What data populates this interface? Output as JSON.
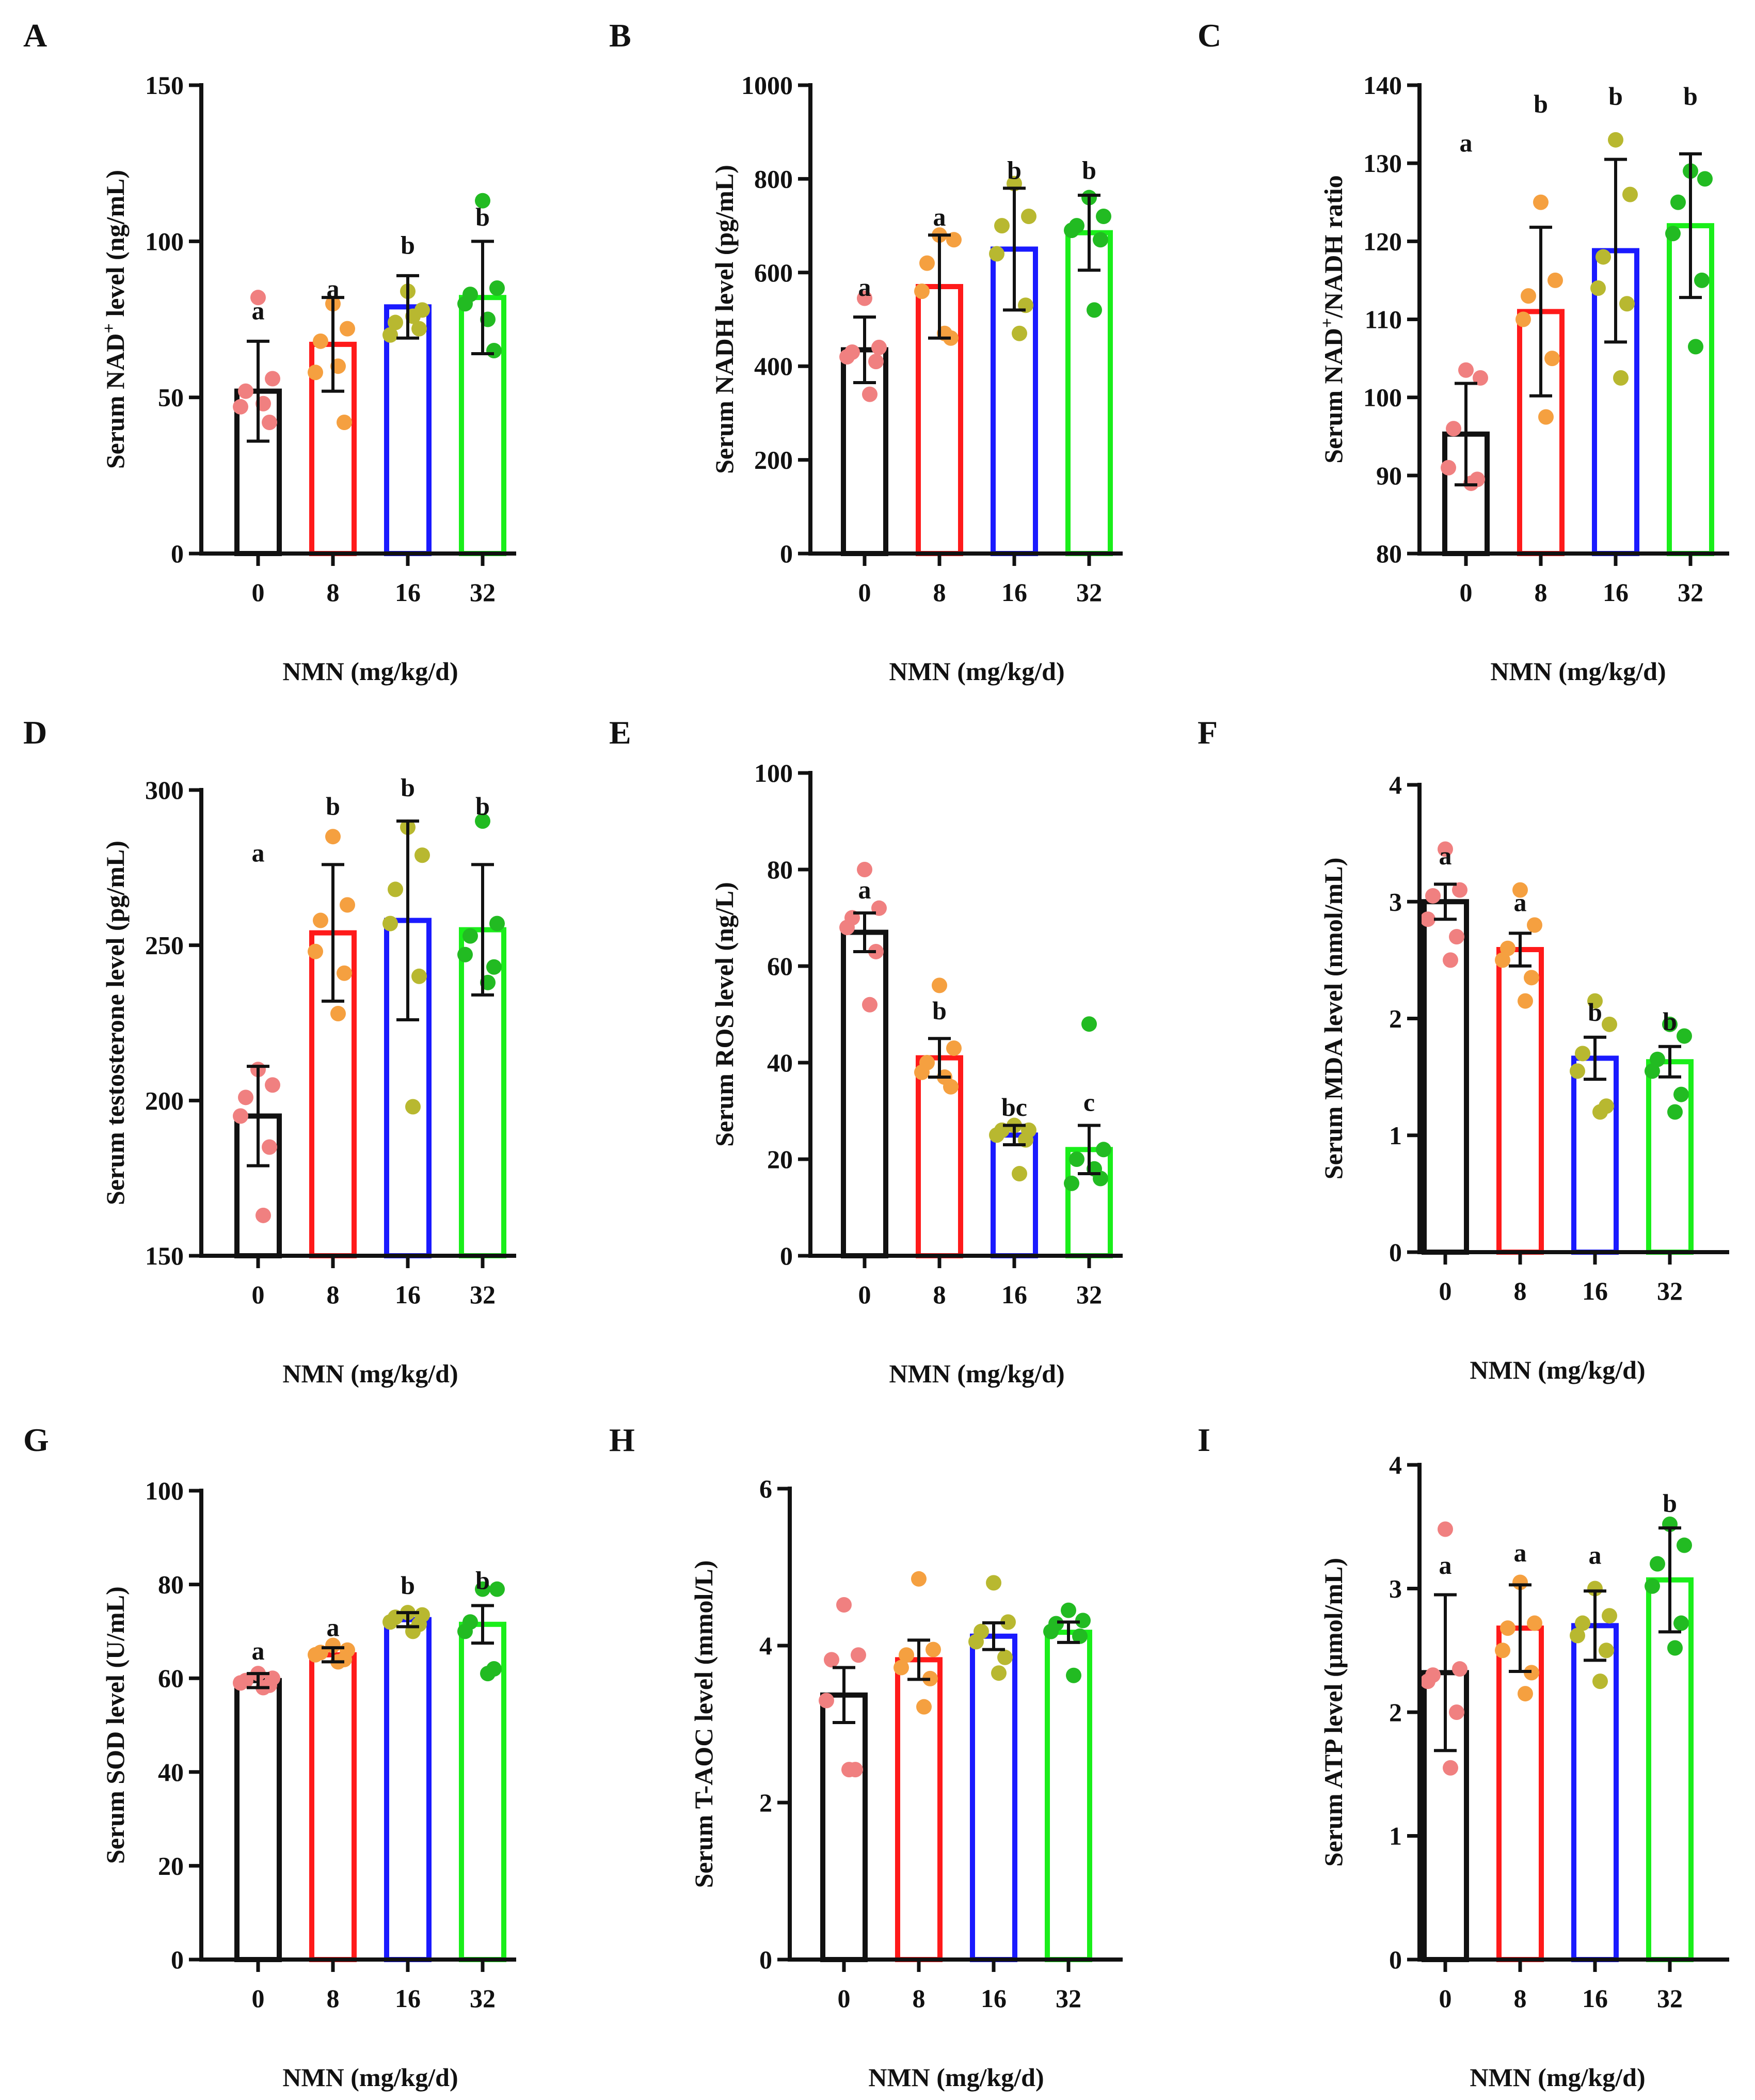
{
  "figure": {
    "xlabel": "NMN (mg/kg/d)",
    "categories": [
      "0",
      "8",
      "16",
      "32"
    ],
    "group_colors": [
      "#111111",
      "#ff1a1a",
      "#1a1aff",
      "#1aee1a"
    ],
    "point_colors": [
      "#f08080",
      "#f5a040",
      "#b8b830",
      "#22bb22"
    ]
  },
  "chart_data": [
    {
      "panel": "A",
      "type": "bar",
      "title": "",
      "xlabel": "NMN (mg/kg/d)",
      "ylabel_parts": [
        [
          "Serum NAD",
          false
        ],
        [
          "+",
          true
        ],
        [
          " level (ng/mL)",
          false
        ]
      ],
      "ylim": [
        0,
        150
      ],
      "yticks": [
        0,
        50,
        100,
        150
      ],
      "categories": [
        "0",
        "8",
        "16",
        "32"
      ],
      "values": [
        52,
        67,
        79,
        82
      ],
      "errors": [
        16,
        15,
        10,
        18
      ],
      "letters": [
        "a",
        "a",
        "b",
        "b"
      ],
      "letter_at": [
        75,
        82,
        96,
        105
      ],
      "points": [
        [
          82,
          56,
          52,
          47,
          42,
          48
        ],
        [
          80,
          72,
          68,
          58,
          42,
          60
        ],
        [
          84,
          78,
          74,
          70,
          72,
          76
        ],
        [
          113,
          85,
          83,
          80,
          65,
          75
        ]
      ]
    },
    {
      "panel": "B",
      "type": "bar",
      "title": "",
      "xlabel": "NMN (mg/kg/d)",
      "ylabel_parts": [
        [
          "Serum NADH level (pg/mL)",
          false
        ]
      ],
      "ylim": [
        0,
        1000
      ],
      "yticks": [
        0,
        200,
        400,
        600,
        800,
        1000
      ],
      "categories": [
        "0",
        "8",
        "16",
        "32"
      ],
      "values": [
        435,
        570,
        650,
        685
      ],
      "errors": [
        70,
        110,
        130,
        80
      ],
      "letters": [
        "a",
        "a",
        "b",
        "b"
      ],
      "letter_at": [
        550,
        700,
        800,
        800
      ],
      "points": [
        [
          545,
          440,
          430,
          420,
          410,
          340
        ],
        [
          680,
          670,
          620,
          560,
          460,
          470
        ],
        [
          790,
          720,
          700,
          640,
          530,
          470
        ],
        [
          760,
          720,
          700,
          690,
          670,
          520
        ]
      ]
    },
    {
      "panel": "C",
      "type": "bar",
      "title": "",
      "xlabel": "NMN (mg/kg/d)",
      "ylabel_parts": [
        [
          "Serum NAD",
          false
        ],
        [
          "+",
          true
        ],
        [
          "/NADH ratio",
          false
        ]
      ],
      "ylim": [
        80,
        140
      ],
      "yticks": [
        80,
        90,
        100,
        110,
        120,
        130,
        140
      ],
      "categories": [
        "0",
        "8",
        "16",
        "32"
      ],
      "values": [
        95.3,
        111,
        118.8,
        122
      ],
      "errors": [
        6.5,
        10.8,
        11.7,
        9.2
      ],
      "letters": [
        "a",
        "b",
        "b",
        "b"
      ],
      "letter_at": [
        131.5,
        136.5,
        137.5,
        137.5
      ],
      "points": [
        [
          103.5,
          102.5,
          96,
          91,
          89.5,
          89
        ],
        [
          125,
          115,
          113,
          110,
          105,
          97.5
        ],
        [
          133,
          126,
          118,
          114,
          112,
          102.5
        ],
        [
          129,
          128,
          125,
          121,
          115,
          106.5
        ]
      ]
    },
    {
      "panel": "D",
      "type": "bar",
      "title": "",
      "xlabel": "NMN (mg/kg/d)",
      "ylabel_parts": [
        [
          "Serum testosterone level (pg/mL)",
          false
        ]
      ],
      "ylim": [
        150,
        300
      ],
      "yticks": [
        150,
        200,
        250,
        300
      ],
      "categories": [
        "0",
        "8",
        "16",
        "32"
      ],
      "values": [
        195,
        254,
        258,
        255
      ],
      "errors": [
        16,
        22,
        32,
        21
      ],
      "letters": [
        "a",
        "b",
        "b",
        "b"
      ],
      "letter_at": [
        277,
        292,
        298,
        292
      ],
      "points": [
        [
          210,
          205,
          201,
          195,
          185,
          163
        ],
        [
          285,
          263,
          258,
          248,
          241,
          228
        ],
        [
          288,
          279,
          268,
          257,
          240,
          198
        ],
        [
          290,
          257,
          253,
          247,
          243,
          238
        ]
      ]
    },
    {
      "panel": "E",
      "type": "bar",
      "title": "",
      "xlabel": "NMN (mg/kg/d)",
      "ylabel_parts": [
        [
          "Serum ROS level (ng/L)",
          false
        ]
      ],
      "ylim": [
        0,
        100
      ],
      "yticks": [
        0,
        20,
        40,
        60,
        80,
        100
      ],
      "categories": [
        "0",
        "8",
        "16",
        "32"
      ],
      "values": [
        67,
        41,
        25,
        22
      ],
      "errors": [
        4,
        4,
        2,
        5
      ],
      "letters": [
        "a",
        "b",
        "bc",
        "c"
      ],
      "letter_at": [
        74,
        49,
        29,
        30
      ],
      "points": [
        [
          80,
          72,
          70,
          68,
          63,
          52
        ],
        [
          56,
          43,
          40,
          38,
          35,
          37
        ],
        [
          27,
          26,
          26,
          25,
          24,
          17
        ],
        [
          48,
          22,
          20,
          15,
          16,
          18
        ]
      ]
    },
    {
      "panel": "F",
      "type": "bar",
      "title": "",
      "xlabel": "NMN (mg/kg/d)",
      "ylabel_parts": [
        [
          "Serum MDA level (nmol/mL)",
          false
        ]
      ],
      "ylim": [
        0,
        4
      ],
      "yticks": [
        0,
        1,
        2,
        3,
        4
      ],
      "categories": [
        "0",
        "8",
        "16",
        "32"
      ],
      "values": [
        3.0,
        2.59,
        1.66,
        1.63
      ],
      "errors": [
        0.15,
        0.14,
        0.18,
        0.13
      ],
      "letters": [
        "a",
        "a",
        "b",
        "b"
      ],
      "letter_at": [
        3.32,
        2.92,
        1.98,
        1.9
      ],
      "points": [
        [
          3.45,
          3.1,
          3.05,
          2.85,
          2.7,
          2.5
        ],
        [
          3.1,
          2.8,
          2.6,
          2.5,
          2.35,
          2.15
        ],
        [
          2.15,
          1.95,
          1.7,
          1.55,
          1.25,
          1.2
        ],
        [
          1.95,
          1.85,
          1.65,
          1.55,
          1.35,
          1.2
        ]
      ]
    },
    {
      "panel": "G",
      "type": "bar",
      "title": "",
      "xlabel": "NMN (mg/kg/d)",
      "ylabel_parts": [
        [
          "Serum SOD level (U/mL)",
          false
        ]
      ],
      "ylim": [
        0,
        100
      ],
      "yticks": [
        0,
        20,
        40,
        60,
        80,
        100
      ],
      "categories": [
        "0",
        "8",
        "16",
        "32"
      ],
      "values": [
        59.5,
        65,
        72.5,
        71.5
      ],
      "errors": [
        1.5,
        1.5,
        1.5,
        4
      ],
      "letters": [
        "a",
        "a",
        "b",
        "b"
      ],
      "letter_at": [
        64,
        69,
        78,
        79
      ],
      "points": [
        [
          61,
          60,
          59.5,
          59,
          58.5,
          58
        ],
        [
          67,
          66,
          65.5,
          65,
          64,
          63.5
        ],
        [
          74,
          73.5,
          73,
          72,
          71.5,
          70
        ],
        [
          79,
          79,
          72,
          70,
          62,
          61
        ]
      ]
    },
    {
      "panel": "H",
      "type": "bar",
      "title": "",
      "xlabel": "NMN (mg/kg/d)",
      "ylabel_parts": [
        [
          "Serum T-AOC level (mmol/L)",
          false
        ]
      ],
      "ylim": [
        0,
        6
      ],
      "yticks": [
        0,
        2,
        4,
        6
      ],
      "categories": [
        "0",
        "8",
        "16",
        "32"
      ],
      "values": [
        3.37,
        3.82,
        4.12,
        4.17
      ],
      "errors": [
        0.35,
        0.25,
        0.17,
        0.13
      ],
      "letters": [],
      "letter_at": [],
      "points": [
        [
          4.52,
          3.88,
          3.82,
          3.3,
          2.42,
          2.42
        ],
        [
          4.85,
          3.95,
          3.88,
          3.72,
          3.58,
          3.22
        ],
        [
          4.8,
          4.3,
          4.18,
          4.05,
          3.85,
          3.65
        ],
        [
          4.45,
          4.32,
          4.28,
          4.18,
          4.12,
          3.62
        ]
      ]
    },
    {
      "panel": "I",
      "type": "bar",
      "title": "",
      "xlabel": "NMN (mg/kg/d)",
      "ylabel_parts": [
        [
          "Serum ATP level (μmol/mL)",
          false
        ]
      ],
      "ylim": [
        0,
        4
      ],
      "yticks": [
        0,
        1,
        2,
        3,
        4
      ],
      "categories": [
        "0",
        "8",
        "16",
        "32"
      ],
      "values": [
        2.32,
        2.68,
        2.7,
        3.07
      ],
      "errors": [
        0.63,
        0.35,
        0.28,
        0.42
      ],
      "letters": [
        "a",
        "a",
        "a",
        "b"
      ],
      "letter_at": [
        3.12,
        3.22,
        3.2,
        3.62
      ],
      "points": [
        [
          3.48,
          2.35,
          2.3,
          2.25,
          2.0,
          1.55
        ],
        [
          3.05,
          2.72,
          2.68,
          2.5,
          2.32,
          2.15
        ],
        [
          3.0,
          2.78,
          2.72,
          2.62,
          2.5,
          2.25
        ],
        [
          3.52,
          3.35,
          3.2,
          3.02,
          2.72,
          2.52
        ]
      ]
    }
  ]
}
